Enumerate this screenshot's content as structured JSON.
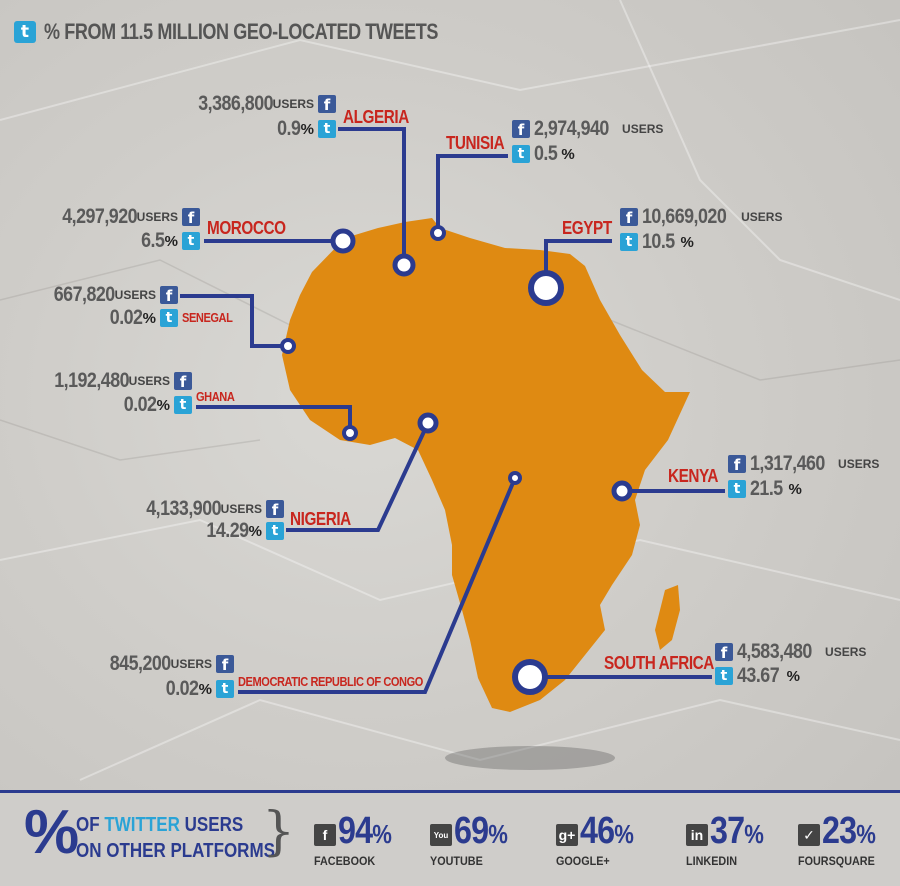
{
  "title": "% FROM 11.5 MILLION GEO-LOCATED TWEETS",
  "icons": {
    "twitter": "twitter-icon",
    "facebook": "facebook-icon"
  },
  "colors": {
    "continent": "#df8a12",
    "lines": "#2b3b8f",
    "country": "#c8261e",
    "twitter": "#2aa3d6",
    "facebook": "#3b5998"
  },
  "units": {
    "users": "USERS",
    "percent": "%"
  },
  "countries": {
    "algeria": {
      "name": "ALGERIA",
      "users": "3,386,800",
      "pct": "0.9"
    },
    "tunisia": {
      "name": "TUNISIA",
      "users": "2,974,940",
      "pct": "0.5"
    },
    "morocco": {
      "name": "MOROCCO",
      "users": "4,297,920",
      "pct": "6.5"
    },
    "egypt": {
      "name": "EGYPT",
      "users": "10,669,020",
      "pct": "10.5"
    },
    "senegal": {
      "name": "SENEGAL",
      "users": "667,820",
      "pct": "0.02"
    },
    "ghana": {
      "name": "GHANA",
      "users": "1,192,480",
      "pct": "0.02"
    },
    "kenya": {
      "name": "KENYA",
      "users": "1,317,460",
      "pct": "21.5"
    },
    "nigeria": {
      "name": "NIGERIA",
      "users": "4,133,900",
      "pct": "14.29"
    },
    "drc": {
      "name": "DEMOCRATIC REPUBLIC OF CONGO",
      "users": "845,200",
      "pct": "0.02"
    },
    "south_africa": {
      "name": "SOUTH AFRICA",
      "users": "4,583,480",
      "pct": "43.67"
    }
  },
  "bottom": {
    "big": "%",
    "line1_a": "OF ",
    "line1_b": "TWITTER",
    "line1_c": " USERS",
    "line2": "ON OTHER PLATFORMS",
    "platforms": [
      {
        "name": "FACEBOOK",
        "value": "94",
        "icon": "facebook-icon",
        "glyph": "f"
      },
      {
        "name": "YOUTUBE",
        "value": "69",
        "icon": "youtube-icon",
        "glyph": "You"
      },
      {
        "name": "GOOGLE+",
        "value": "46",
        "icon": "google-plus-icon",
        "glyph": "g+"
      },
      {
        "name": "LINKEDIN",
        "value": "37",
        "icon": "linkedin-icon",
        "glyph": "in"
      },
      {
        "name": "FOURSQUARE",
        "value": "23",
        "icon": "foursquare-icon",
        "glyph": "✓"
      }
    ]
  }
}
